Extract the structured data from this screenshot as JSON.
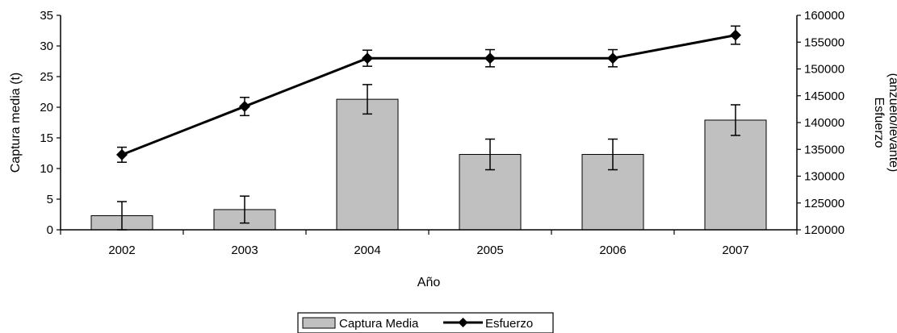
{
  "chart_data": {
    "type": "bar",
    "categories": [
      "2002",
      "2003",
      "2004",
      "2005",
      "2006",
      "2007"
    ],
    "xlabel": "Año",
    "ylabel_left": "Captura media (t)",
    "ylabel_right_line1": "Esfuerzo",
    "ylabel_right_line2": "(anzuelo/levante)",
    "ylim_left": [
      0,
      35
    ],
    "yticks_left": [
      "0",
      "5",
      "10",
      "15",
      "20",
      "25",
      "30",
      "35"
    ],
    "ylim_right": [
      120000,
      160000
    ],
    "yticks_right": [
      "120000",
      "125000",
      "130000",
      "135000",
      "140000",
      "145000",
      "150000",
      "155000",
      "160000"
    ],
    "grid": false,
    "legend_position": "bottom",
    "series": [
      {
        "name": "Captura Media",
        "type": "bar",
        "axis": "left",
        "color": "#c0c0c0",
        "values": [
          2.3,
          3.3,
          21.3,
          12.3,
          12.3,
          17.9
        ],
        "error": [
          2.3,
          2.2,
          2.4,
          2.5,
          2.5,
          2.5
        ]
      },
      {
        "name": "Esfuerzo",
        "type": "line",
        "axis": "right",
        "color": "#000000",
        "values": [
          134000,
          143000,
          152000,
          152000,
          152000,
          156300
        ],
        "error": [
          1400,
          1700,
          1500,
          1600,
          1600,
          1700
        ]
      }
    ]
  }
}
